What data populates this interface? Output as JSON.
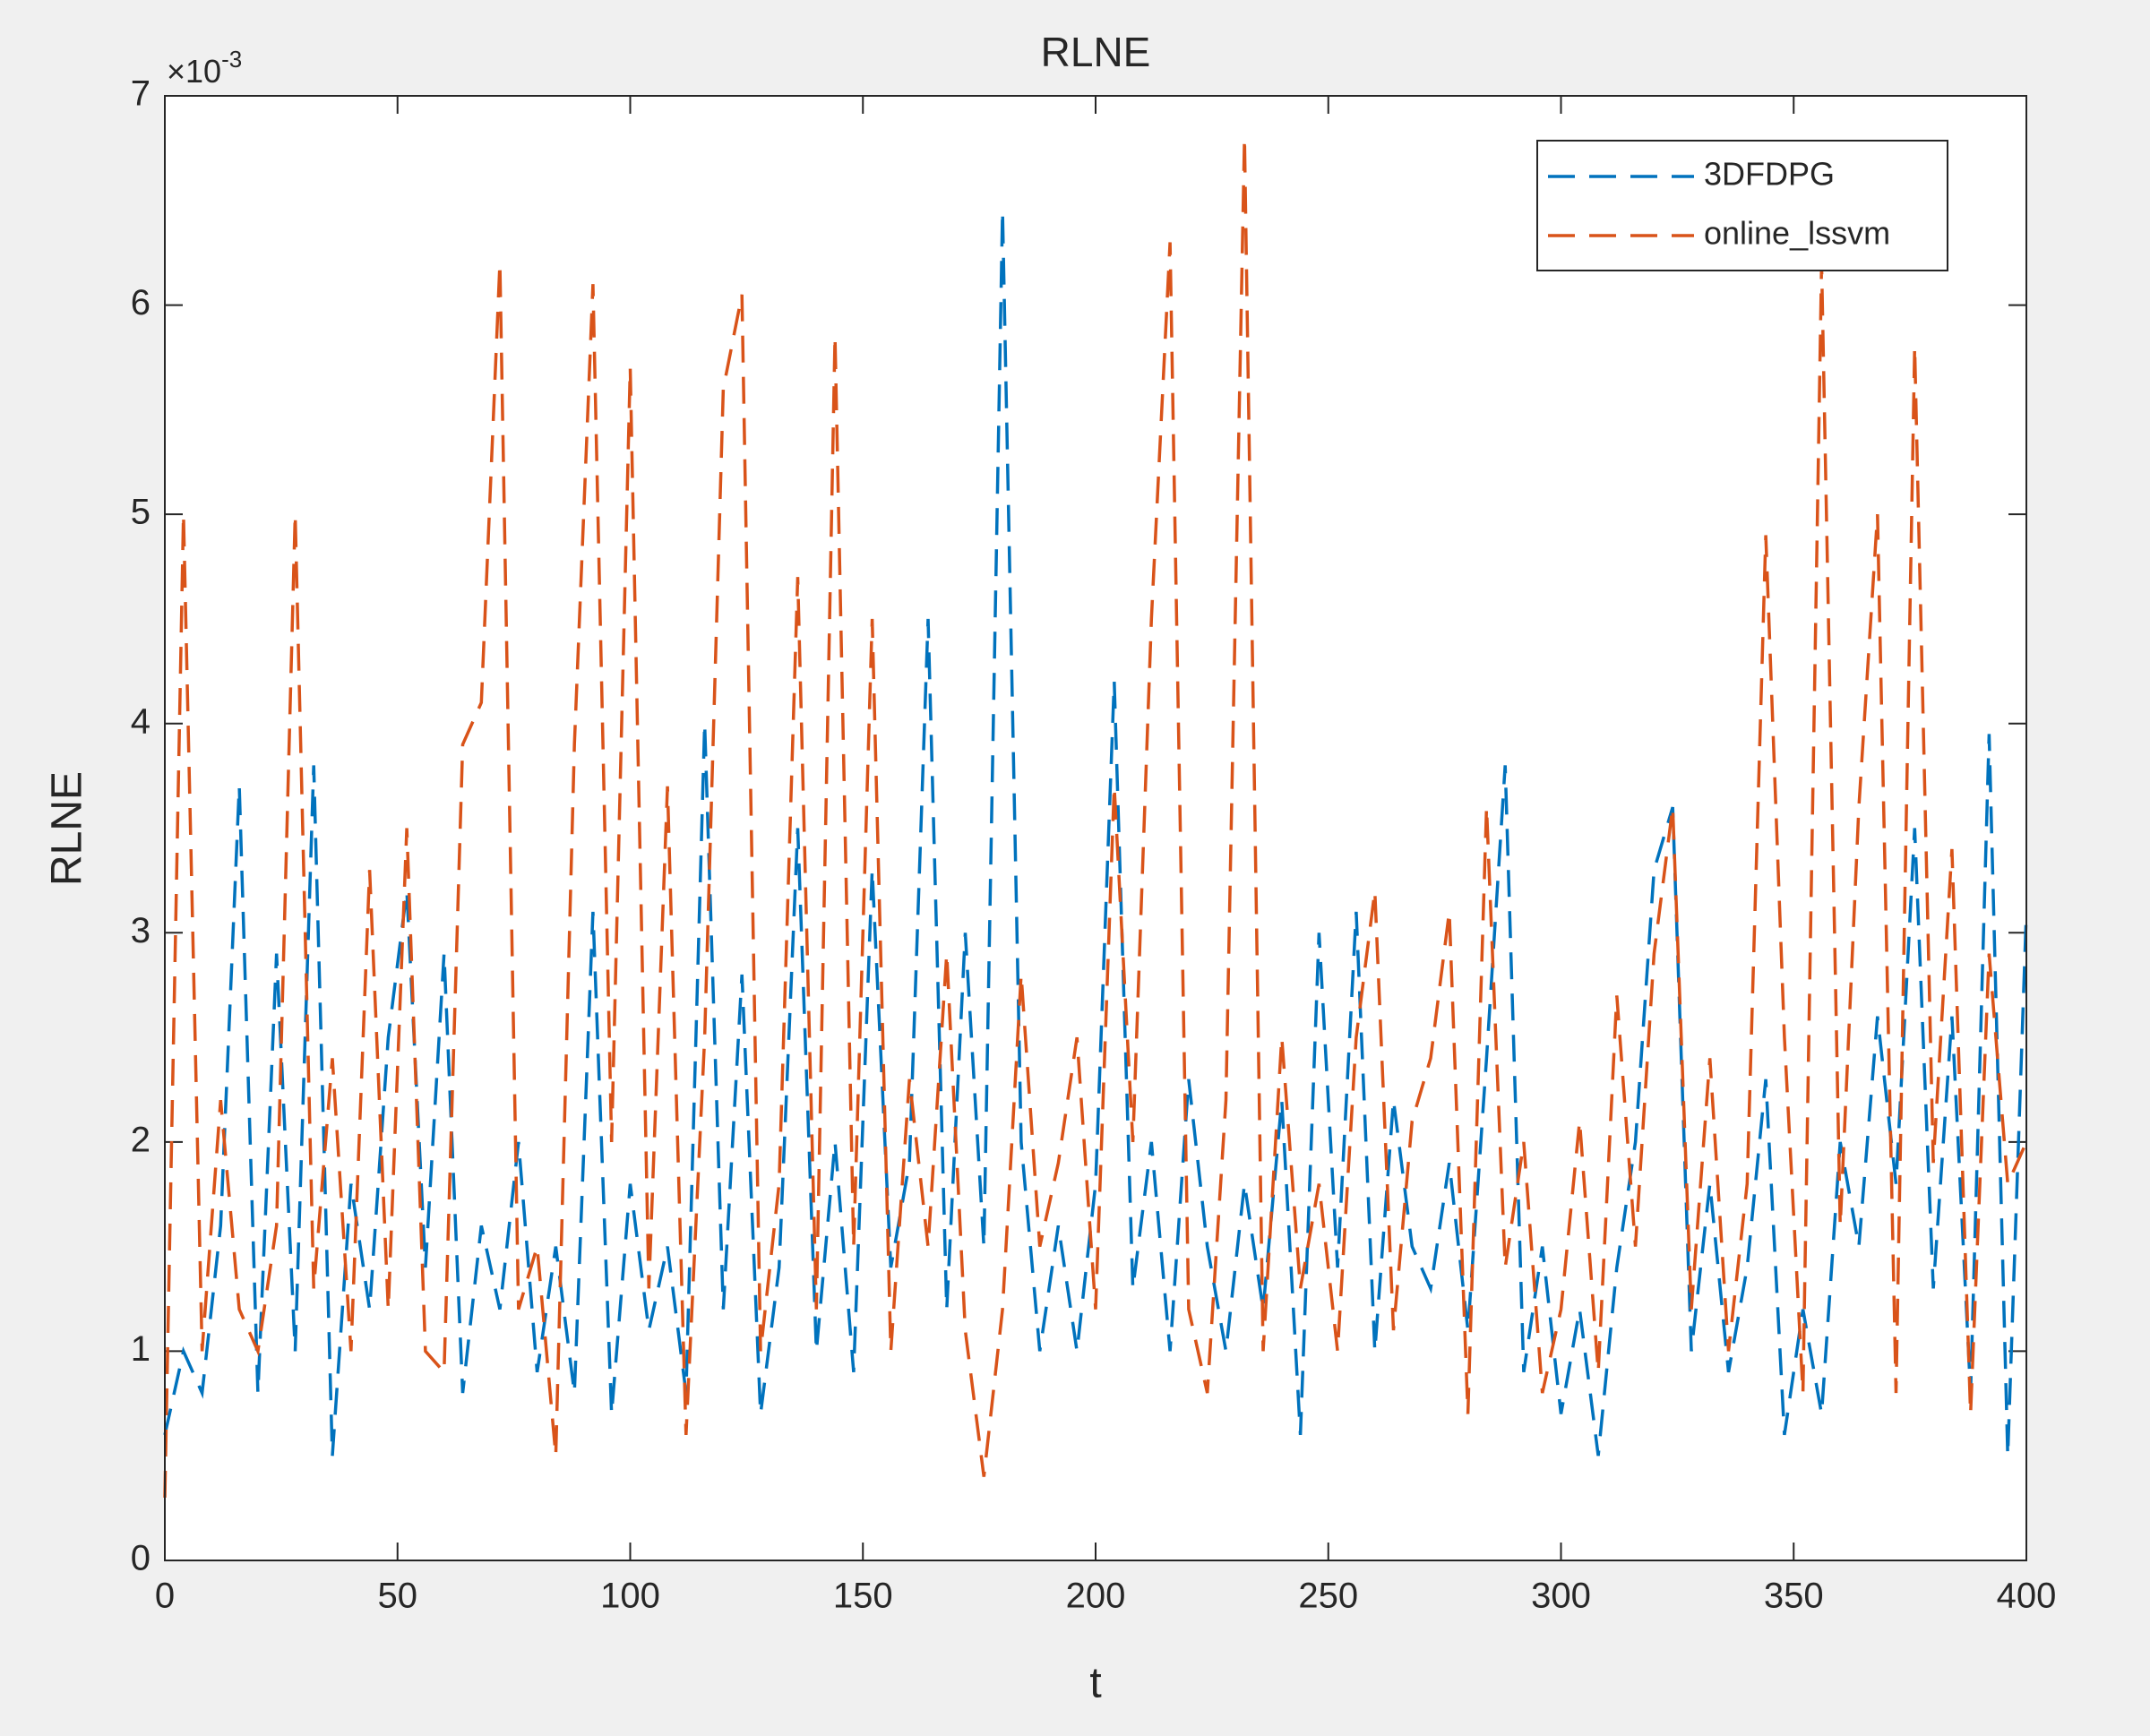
{
  "chart_data": {
    "type": "line",
    "title": "RLNE",
    "xlabel": "t",
    "ylabel": "RLNE",
    "y_multiplier_base": "×10",
    "y_multiplier_power": "-3",
    "xlim": [
      0,
      400
    ],
    "xticks": [
      0,
      50,
      100,
      150,
      200,
      250,
      300,
      350,
      400
    ],
    "ylim": [
      0,
      7
    ],
    "yticks": [
      0,
      1,
      2,
      3,
      4,
      5,
      6,
      7
    ],
    "grid": false,
    "legend": "upper right",
    "line_style": "dashed",
    "x": [
      0,
      4,
      8,
      12,
      16,
      20,
      24,
      28,
      32,
      36,
      40,
      44,
      48,
      52,
      56,
      60,
      64,
      68,
      72,
      76,
      80,
      84,
      88,
      92,
      96,
      100,
      104,
      108,
      112,
      116,
      120,
      124,
      128,
      132,
      136,
      140,
      144,
      148,
      152,
      156,
      160,
      164,
      168,
      172,
      176,
      180,
      184,
      188,
      192,
      196,
      200,
      204,
      208,
      212,
      216,
      220,
      224,
      228,
      232,
      236,
      240,
      244,
      248,
      252,
      256,
      260,
      264,
      268,
      272,
      276,
      280,
      284,
      288,
      292,
      296,
      300,
      304,
      308,
      312,
      316,
      320,
      324,
      328,
      332,
      336,
      340,
      344,
      348,
      352,
      356,
      360,
      364,
      368,
      372,
      376,
      380,
      384,
      388,
      392,
      396,
      400
    ],
    "series": [
      {
        "name": "3DFDPG",
        "color": "#0072bd",
        "values": [
          0.6,
          1.0,
          0.8,
          1.6,
          3.7,
          0.8,
          2.9,
          1.0,
          3.8,
          0.5,
          1.8,
          1.2,
          2.5,
          3.2,
          1.4,
          2.9,
          0.8,
          1.6,
          1.2,
          2.0,
          0.9,
          1.5,
          0.8,
          3.1,
          0.7,
          1.8,
          1.1,
          1.5,
          0.8,
          4.0,
          1.2,
          2.8,
          0.7,
          1.4,
          3.5,
          1.0,
          2.0,
          0.9,
          3.3,
          1.4,
          1.9,
          4.5,
          1.2,
          3.0,
          1.5,
          6.45,
          2.0,
          1.0,
          1.6,
          1.0,
          1.8,
          4.2,
          1.3,
          2.0,
          1.0,
          2.3,
          1.5,
          1.0,
          1.8,
          1.2,
          2.2,
          0.6,
          3.0,
          1.4,
          3.1,
          1.0,
          2.2,
          1.5,
          1.3,
          1.9,
          1.1,
          2.4,
          3.8,
          0.9,
          1.5,
          0.7,
          1.2,
          0.5,
          1.4,
          2.0,
          3.3,
          3.6,
          1.0,
          1.8,
          0.9,
          1.4,
          2.3,
          0.6,
          1.2,
          0.7,
          2.0,
          1.5,
          2.6,
          1.8,
          3.5,
          1.3,
          2.6,
          0.8,
          3.95,
          0.5,
          3.1
        ]
      },
      {
        "name": "online_lssvm",
        "color": "#d95319",
        "values": [
          0.3,
          5.0,
          1.0,
          2.2,
          1.2,
          1.0,
          1.6,
          5.0,
          1.3,
          2.4,
          1.0,
          3.3,
          1.2,
          3.5,
          1.0,
          0.9,
          3.9,
          4.1,
          6.2,
          1.2,
          1.5,
          0.5,
          3.9,
          6.1,
          2.0,
          5.7,
          1.3,
          3.7,
          0.6,
          2.5,
          5.6,
          6.05,
          1.0,
          1.8,
          4.7,
          1.2,
          5.85,
          1.5,
          4.5,
          1.0,
          2.3,
          1.5,
          2.9,
          1.1,
          0.4,
          1.2,
          2.8,
          1.5,
          1.9,
          2.5,
          1.2,
          3.7,
          2.0,
          4.5,
          6.3,
          1.2,
          0.8,
          2.2,
          6.8,
          1.0,
          2.5,
          1.3,
          1.8,
          1.0,
          2.5,
          3.2,
          1.1,
          2.1,
          2.4,
          3.1,
          0.7,
          3.6,
          1.4,
          2.0,
          0.8,
          1.2,
          2.1,
          0.9,
          2.7,
          1.5,
          2.9,
          3.6,
          1.2,
          2.4,
          1.0,
          1.8,
          4.9,
          2.5,
          0.8,
          6.2,
          1.6,
          3.6,
          5.0,
          0.8,
          5.8,
          1.9,
          3.4,
          0.7,
          2.9,
          1.8,
          2.0
        ]
      }
    ]
  }
}
